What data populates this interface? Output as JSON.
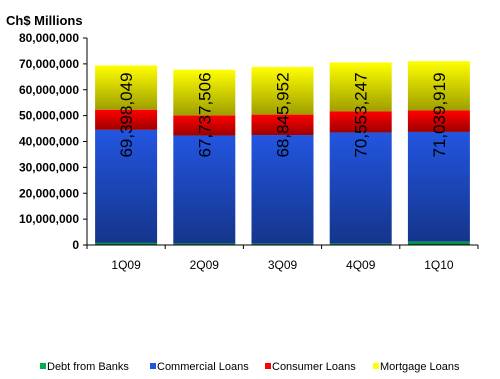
{
  "chart_data": {
    "type": "bar",
    "stacked": true,
    "unit_label": "Ch$ Millions",
    "categories": [
      "1Q09",
      "2Q09",
      "3Q09",
      "4Q09",
      "1Q10"
    ],
    "series": [
      {
        "name": "Debt from Banks",
        "color": "#00B050",
        "values": [
          800000,
          600000,
          500000,
          500000,
          1300000
        ]
      },
      {
        "name": "Commercial Loans",
        "color": "#2255E0",
        "values": [
          43700000,
          41700000,
          42000000,
          43000000,
          42400000
        ]
      },
      {
        "name": "Consumer Loans",
        "color": "#FF0000",
        "values": [
          7800000,
          7800000,
          7900000,
          8200000,
          8300000
        ]
      },
      {
        "name": "Mortgage Loans",
        "color": "#FFFF00",
        "values": [
          17098049,
          17637506,
          18445952,
          18853247,
          19039919
        ]
      }
    ],
    "totals": [
      "69,398,049",
      "67,737,506",
      "68,845,952",
      "70,553,247",
      "71,039,919"
    ],
    "ylim": [
      0,
      80000000
    ],
    "y_ticks": [
      "0",
      "10,000,000",
      "20,000,000",
      "30,000,000",
      "40,000,000",
      "50,000,000",
      "60,000,000",
      "70,000,000",
      "80,000,000"
    ],
    "legend_position": "bottom",
    "grid": false
  }
}
